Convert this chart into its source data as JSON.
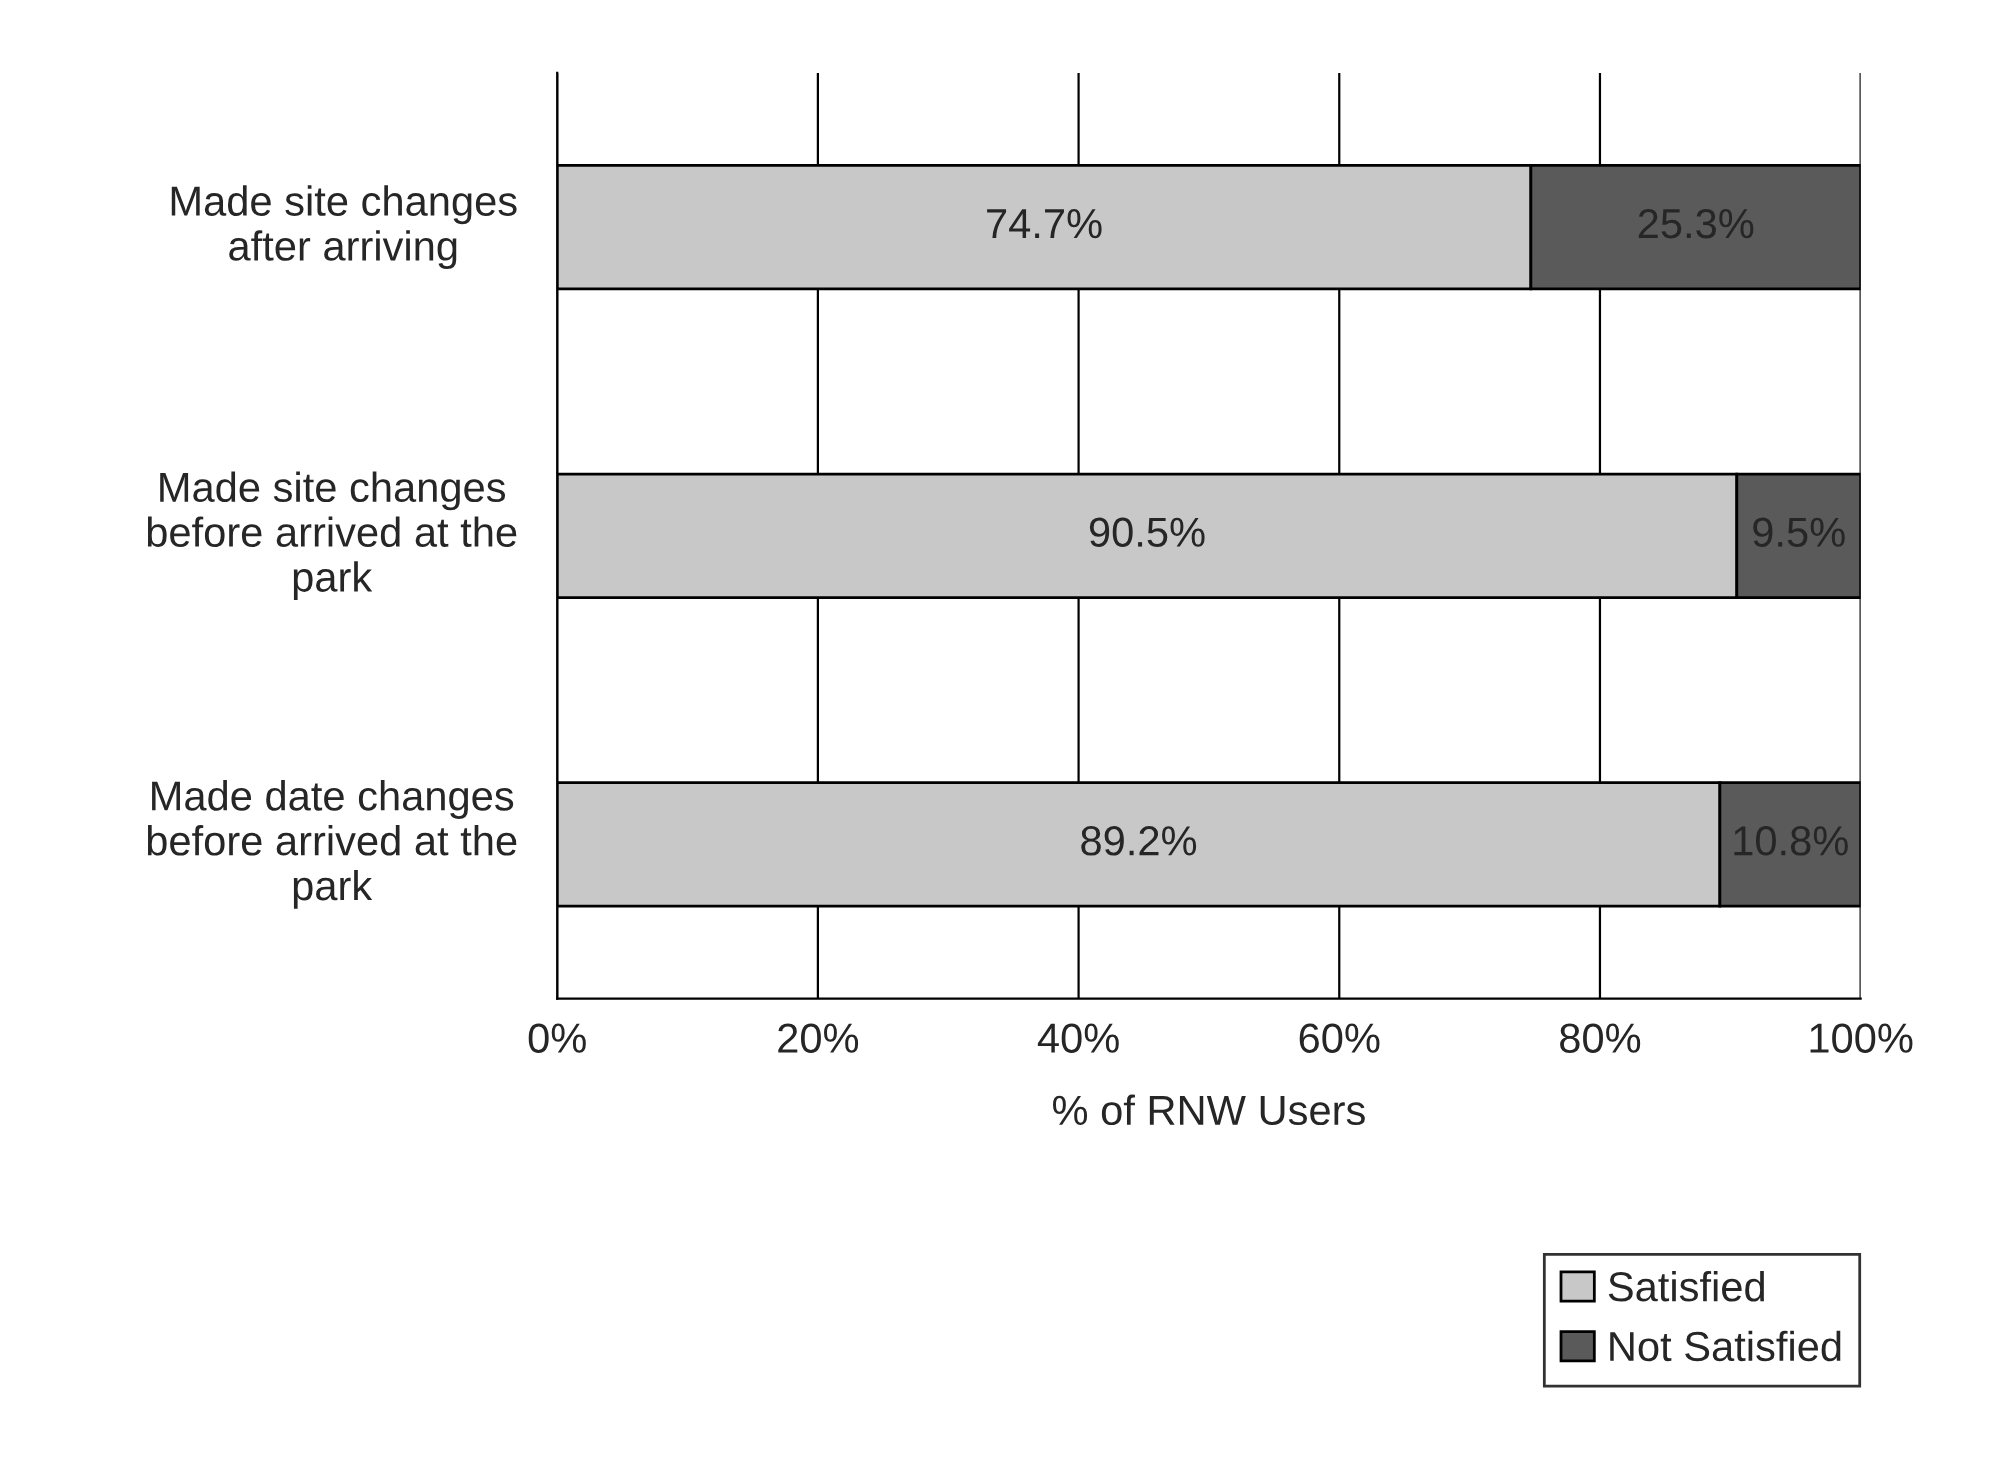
{
  "chart_data": {
    "type": "bar",
    "orientation": "horizontal",
    "stacked": true,
    "categories": [
      "Made site changes after arriving",
      "Made site changes before arrived at the park",
      "Made date changes before arrived at the park"
    ],
    "series": [
      {
        "name": "Satisfied",
        "color": "#c8c8c8",
        "values": [
          74.7,
          90.5,
          89.2
        ],
        "value_labels": [
          "74.7%",
          "90.5%",
          "89.2%"
        ]
      },
      {
        "name": "Not Satisfied",
        "color": "#5a5a5a",
        "values": [
          25.3,
          9.5,
          10.8
        ],
        "value_labels": [
          "25.3%",
          "9.5%",
          "10.8%"
        ]
      }
    ],
    "xlabel": "% of RNW Users",
    "xlim": [
      0,
      100
    ],
    "xticks": [
      {
        "value": 0,
        "label": "0%"
      },
      {
        "value": 20,
        "label": "20%"
      },
      {
        "value": 40,
        "label": "40%"
      },
      {
        "value": 60,
        "label": "60%"
      },
      {
        "value": 80,
        "label": "80%"
      },
      {
        "value": 100,
        "label": "100%"
      }
    ],
    "grid": "x",
    "legend": "bottom right"
  }
}
